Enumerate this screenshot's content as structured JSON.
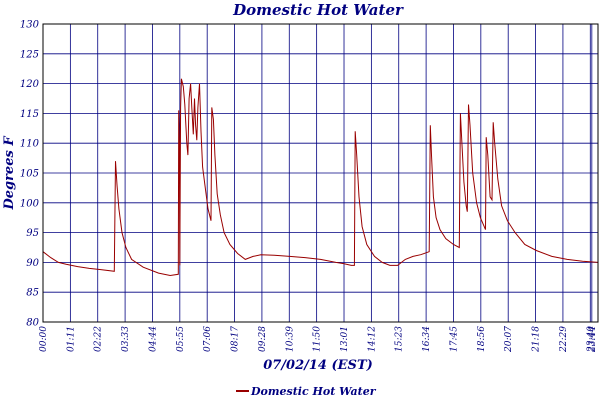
{
  "chart_data": {
    "type": "line",
    "title": "Domestic Hot Water",
    "xlabel": "07/02/14 (EST)",
    "ylabel": "Degrees F",
    "ylim": [
      80,
      130
    ],
    "yticks": [
      80,
      85,
      90,
      95,
      100,
      105,
      110,
      115,
      120,
      125,
      130
    ],
    "xlim": [
      0,
      1440
    ],
    "xticks": [
      {
        "label": "00:00",
        "minute": 0
      },
      {
        "label": "01:11",
        "minute": 71
      },
      {
        "label": "02:22",
        "minute": 142
      },
      {
        "label": "03:33",
        "minute": 213
      },
      {
        "label": "04:44",
        "minute": 284
      },
      {
        "label": "05:55",
        "minute": 355
      },
      {
        "label": "07:06",
        "minute": 426
      },
      {
        "label": "08:17",
        "minute": 497
      },
      {
        "label": "09:28",
        "minute": 568
      },
      {
        "label": "10:39",
        "minute": 639
      },
      {
        "label": "11:50",
        "minute": 710
      },
      {
        "label": "13:01",
        "minute": 781
      },
      {
        "label": "14:12",
        "minute": 852
      },
      {
        "label": "15:23",
        "minute": 923
      },
      {
        "label": "16:34",
        "minute": 994
      },
      {
        "label": "17:45",
        "minute": 1065
      },
      {
        "label": "18:56",
        "minute": 1136
      },
      {
        "label": "20:07",
        "minute": 1207
      },
      {
        "label": "21:18",
        "minute": 1278
      },
      {
        "label": "22:29",
        "minute": 1349
      },
      {
        "label": "23:40",
        "minute": 1420
      },
      {
        "label": "23:44",
        "minute": 1424
      }
    ],
    "grid": true,
    "legend_position": "bottom",
    "series": [
      {
        "name": "Domestic Hot Water",
        "color": "#990000",
        "points": [
          [
            0,
            91.8
          ],
          [
            20,
            90.8
          ],
          [
            40,
            90.0
          ],
          [
            60,
            89.7
          ],
          [
            90,
            89.3
          ],
          [
            120,
            89.0
          ],
          [
            150,
            88.8
          ],
          [
            185,
            88.5
          ],
          [
            188,
            107.0
          ],
          [
            192,
            103.0
          ],
          [
            197,
            99.0
          ],
          [
            205,
            95.0
          ],
          [
            215,
            92.5
          ],
          [
            230,
            90.5
          ],
          [
            260,
            89.2
          ],
          [
            300,
            88.2
          ],
          [
            330,
            87.8
          ],
          [
            351,
            88.0
          ],
          [
            352,
            115.5
          ],
          [
            354,
            110.0
          ],
          [
            355,
            89.5
          ],
          [
            357,
            116.0
          ],
          [
            359,
            120.8
          ],
          [
            364,
            119.5
          ],
          [
            368,
            116.5
          ],
          [
            373,
            110.0
          ],
          [
            376,
            108.0
          ],
          [
            379,
            117.5
          ],
          [
            383,
            120.0
          ],
          [
            386,
            116.0
          ],
          [
            390,
            111.5
          ],
          [
            393,
            117.5
          ],
          [
            396,
            113.0
          ],
          [
            399,
            110.5
          ],
          [
            402,
            116.0
          ],
          [
            406,
            120.0
          ],
          [
            410,
            112.0
          ],
          [
            414,
            106.0
          ],
          [
            420,
            103.0
          ],
          [
            428,
            99.0
          ],
          [
            432,
            98.0
          ],
          [
            436,
            97.0
          ],
          [
            438,
            116.0
          ],
          [
            442,
            114.0
          ],
          [
            446,
            108.0
          ],
          [
            452,
            101.5
          ],
          [
            460,
            98.0
          ],
          [
            470,
            95.0
          ],
          [
            485,
            93.0
          ],
          [
            505,
            91.5
          ],
          [
            525,
            90.5
          ],
          [
            545,
            91.0
          ],
          [
            565,
            91.3
          ],
          [
            600,
            91.2
          ],
          [
            640,
            91.0
          ],
          [
            680,
            90.8
          ],
          [
            720,
            90.5
          ],
          [
            760,
            90.0
          ],
          [
            780,
            89.8
          ],
          [
            800,
            89.5
          ],
          [
            808,
            89.5
          ],
          [
            810,
            112.0
          ],
          [
            814,
            108.0
          ],
          [
            820,
            101.0
          ],
          [
            828,
            96.0
          ],
          [
            840,
            93.0
          ],
          [
            860,
            91.0
          ],
          [
            880,
            90.0
          ],
          [
            900,
            89.5
          ],
          [
            920,
            89.5
          ],
          [
            940,
            90.5
          ],
          [
            960,
            91.0
          ],
          [
            980,
            91.3
          ],
          [
            1002,
            91.8
          ],
          [
            1005,
            113.0
          ],
          [
            1008,
            108.0
          ],
          [
            1013,
            101.0
          ],
          [
            1020,
            97.5
          ],
          [
            1030,
            95.5
          ],
          [
            1045,
            94.0
          ],
          [
            1065,
            93.0
          ],
          [
            1080,
            92.5
          ],
          [
            1083,
            115.0
          ],
          [
            1086,
            111.0
          ],
          [
            1092,
            103.5
          ],
          [
            1098,
            99.5
          ],
          [
            1101,
            98.5
          ],
          [
            1104,
            116.5
          ],
          [
            1108,
            113.0
          ],
          [
            1115,
            105.0
          ],
          [
            1125,
            100.0
          ],
          [
            1135,
            97.5
          ],
          [
            1148,
            95.5
          ],
          [
            1150,
            111.0
          ],
          [
            1154,
            108.0
          ],
          [
            1160,
            101.0
          ],
          [
            1165,
            100.5
          ],
          [
            1168,
            113.5
          ],
          [
            1172,
            110.0
          ],
          [
            1180,
            104.0
          ],
          [
            1190,
            99.5
          ],
          [
            1205,
            97.0
          ],
          [
            1225,
            95.0
          ],
          [
            1250,
            93.0
          ],
          [
            1280,
            92.0
          ],
          [
            1320,
            91.0
          ],
          [
            1360,
            90.5
          ],
          [
            1400,
            90.2
          ],
          [
            1440,
            90.0
          ]
        ]
      }
    ]
  }
}
